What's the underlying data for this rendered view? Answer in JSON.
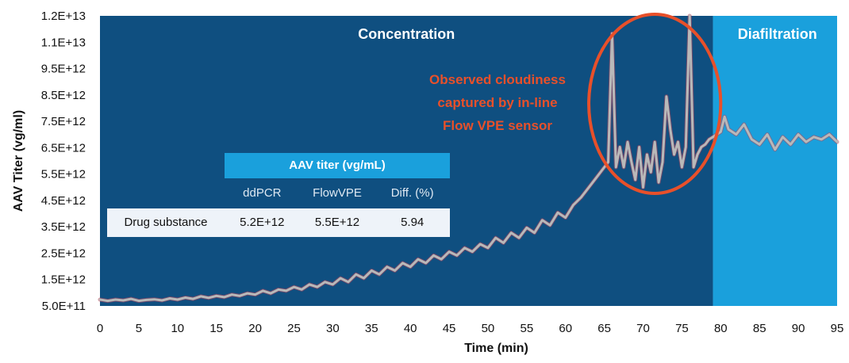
{
  "chart_data": {
    "type": "line",
    "xlabel": "Time (min)",
    "ylabel": "AAV Titer (vg/ml)",
    "xlim": [
      0,
      95
    ],
    "ylim": [
      500000000000.0,
      12000000000000.0
    ],
    "x_ticks": [
      "0",
      "5",
      "10",
      "15",
      "20",
      "25",
      "30",
      "35",
      "40",
      "45",
      "50",
      "55",
      "60",
      "65",
      "70",
      "75",
      "80",
      "85",
      "90",
      "95"
    ],
    "y_ticks": [
      "1.2E+13",
      "1.1E+13",
      "9.5E+12",
      "8.5E+12",
      "7.5E+12",
      "6.5E+12",
      "5.5E+12",
      "4.5E+12",
      "3.5E+12",
      "2.5E+12",
      "1.5E+12",
      "5.0E+11"
    ],
    "regions": [
      {
        "label": "Concentration",
        "x_start": 0,
        "x_end": 79,
        "color": "#0f4f80"
      },
      {
        "label": "Diafiltration",
        "x_start": 79,
        "x_end": 95,
        "color": "#1aa0dc"
      }
    ],
    "annotation": {
      "lines": [
        "Observed cloudiness",
        "captured by in-line",
        "Flow VPE sensor"
      ],
      "color": "#e8502a",
      "ellipse_x_range": [
        63,
        80
      ]
    },
    "series": [
      {
        "color": "#b9b9b9",
        "x": [
          0,
          1,
          2,
          3,
          4,
          5,
          6,
          7,
          8,
          9,
          10,
          11,
          12,
          13,
          14,
          15,
          16,
          17,
          18,
          19,
          20,
          21,
          22,
          23,
          24,
          25,
          26,
          27,
          28,
          29,
          30,
          31,
          32,
          33,
          34,
          35,
          36,
          37,
          38,
          39,
          40,
          41,
          42,
          43,
          44,
          45,
          46,
          47,
          48,
          49,
          50,
          51,
          52,
          53,
          54,
          55,
          56,
          57,
          58,
          59,
          60,
          61,
          62,
          63,
          64,
          65,
          65.5,
          66,
          66.5,
          67,
          67.5,
          68,
          68.5,
          69,
          69.5,
          70,
          70.5,
          71,
          71.5,
          72,
          72.5,
          73,
          73.5,
          74,
          74.5,
          75,
          75.5,
          76,
          76.5,
          77,
          77.5,
          78,
          78.5,
          79,
          80,
          80.5,
          81,
          82,
          83,
          84,
          85,
          86,
          87,
          88,
          89,
          90,
          91,
          92,
          93,
          94,
          95
        ],
        "y": [
          750000000000.0,
          700000000000.0,
          750000000000.0,
          720000000000.0,
          780000000000.0,
          700000000000.0,
          740000000000.0,
          760000000000.0,
          720000000000.0,
          800000000000.0,
          750000000000.0,
          830000000000.0,
          780000000000.0,
          880000000000.0,
          820000000000.0,
          900000000000.0,
          850000000000.0,
          950000000000.0,
          900000000000.0,
          1000000000000.0,
          950000000000.0,
          1100000000000.0,
          1000000000000.0,
          1150000000000.0,
          1100000000000.0,
          1250000000000.0,
          1150000000000.0,
          1350000000000.0,
          1250000000000.0,
          1450000000000.0,
          1350000000000.0,
          1600000000000.0,
          1450000000000.0,
          1750000000000.0,
          1600000000000.0,
          1900000000000.0,
          1750000000000.0,
          2050000000000.0,
          1900000000000.0,
          2200000000000.0,
          2050000000000.0,
          2350000000000.0,
          2200000000000.0,
          2500000000000.0,
          2350000000000.0,
          2650000000000.0,
          2500000000000.0,
          2800000000000.0,
          2650000000000.0,
          2950000000000.0,
          2800000000000.0,
          3200000000000.0,
          3000000000000.0,
          3400000000000.0,
          3200000000000.0,
          3600000000000.0,
          3400000000000.0,
          3900000000000.0,
          3700000000000.0,
          4200000000000.0,
          4000000000000.0,
          4500000000000.0,
          4800000000000.0,
          5200000000000.0,
          5600000000000.0,
          6000000000000.0,
          6200000000000.0,
          11300000000000.0,
          6000000000000.0,
          6800000000000.0,
          6000000000000.0,
          7000000000000.0,
          6200000000000.0,
          5500000000000.0,
          6800000000000.0,
          5200000000000.0,
          6500000000000.0,
          5800000000000.0,
          7000000000000.0,
          5400000000000.0,
          6200000000000.0,
          8800000000000.0,
          7500000000000.0,
          6500000000000.0,
          7000000000000.0,
          6000000000000.0,
          6800000000000.0,
          12000000000000.0,
          6000000000000.0,
          6500000000000.0,
          6800000000000.0,
          6900000000000.0,
          7100000000000.0,
          7200000000000.0,
          7400000000000.0,
          8000000000000.0,
          7500000000000.0,
          7300000000000.0,
          7700000000000.0,
          7100000000000.0,
          6900000000000.0,
          7300000000000.0,
          6700000000000.0,
          7200000000000.0,
          6900000000000.0,
          7300000000000.0,
          7000000000000.0,
          7200000000000.0,
          7100000000000.0,
          7300000000000.0,
          7000000000000.0
        ]
      }
    ],
    "table": {
      "title": "AAV titer (vg/mL)",
      "columns": [
        "ddPCR",
        "FlowVPE",
        "Diff. (%)"
      ],
      "rows": [
        {
          "label": "Drug substance",
          "values": [
            "5.2E+12",
            "5.5E+12",
            "5.94"
          ]
        }
      ]
    }
  }
}
